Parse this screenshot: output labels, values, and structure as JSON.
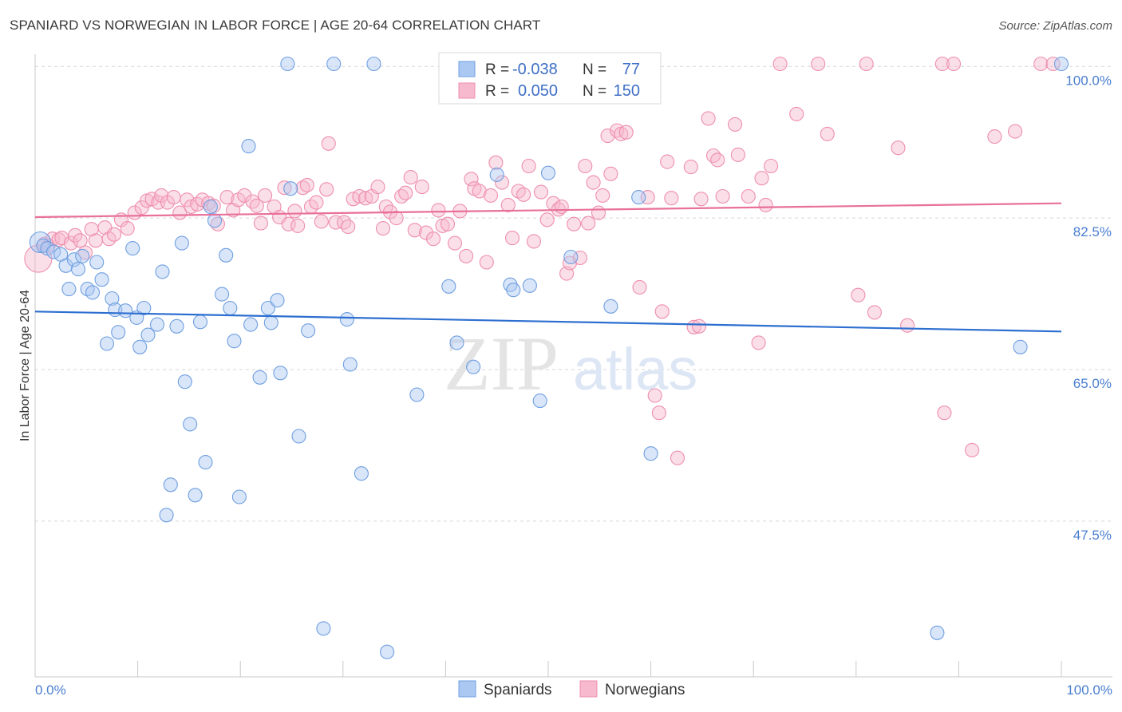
{
  "header": {
    "title": "SPANIARD VS NORWEGIAN IN LABOR FORCE | AGE 20-64 CORRELATION CHART",
    "source": "Source: ZipAtlas.com"
  },
  "watermark": {
    "zip": "ZIP",
    "atlas": "atlas"
  },
  "stats": {
    "row1": {
      "r_label": "R =",
      "r_value": "-0.038",
      "n_label": "N =",
      "n_value": "77"
    },
    "row2": {
      "r_label": "R =",
      "r_value": "0.050",
      "n_label": "N =",
      "n_value": "150"
    }
  },
  "legend": {
    "series1": "Spaniards",
    "series2": "Norwegians"
  },
  "colors": {
    "blue_fill": "#aac8f2",
    "blue_stroke": "#6f9fe0",
    "blue_line": "#2d6fd0",
    "pink_fill": "#f6b9cd",
    "pink_stroke": "#ee8eae",
    "pink_line": "#e8709a",
    "tick_text": "#4a7fd0"
  },
  "chart_data": {
    "type": "scatter",
    "title": "SPANIARD VS NORWEGIAN IN LABOR FORCE | AGE 20-64 CORRELATION CHART",
    "ylabel": "In Labor Force | Age 20-64",
    "xlabel": "",
    "xlim": [
      0,
      100
    ],
    "ylim": [
      31,
      101.5
    ],
    "x_ticks": [
      "0.0%",
      "100.0%"
    ],
    "y_ticks": [
      {
        "value": 100,
        "label": "100.0%"
      },
      {
        "value": 82.5,
        "label": "82.5%"
      },
      {
        "value": 65,
        "label": "65.0%"
      },
      {
        "value": 47.5,
        "label": "47.5%"
      }
    ],
    "grid": "horizontal dashed",
    "series": [
      {
        "name": "Spaniards",
        "color": "#6f9fe0",
        "trend": {
          "x": [
            0,
            100
          ],
          "y": [
            71.7,
            69.4
          ]
        },
        "points": [
          [
            0.5,
            79.7
          ],
          [
            0.8,
            79.3
          ],
          [
            1.2,
            79.0
          ],
          [
            1.8,
            78.6
          ],
          [
            2.5,
            78.3
          ],
          [
            3.0,
            77.0
          ],
          [
            3.3,
            74.3
          ],
          [
            3.8,
            77.7
          ],
          [
            4.2,
            76.6
          ],
          [
            4.6,
            78.1
          ],
          [
            5.1,
            74.3
          ],
          [
            5.6,
            73.9
          ],
          [
            6.0,
            77.4
          ],
          [
            6.5,
            75.4
          ],
          [
            7.0,
            68.0
          ],
          [
            7.5,
            73.2
          ],
          [
            7.8,
            71.9
          ],
          [
            8.1,
            69.3
          ],
          [
            8.8,
            71.8
          ],
          [
            9.5,
            79.0
          ],
          [
            9.9,
            71.0
          ],
          [
            10.2,
            67.6
          ],
          [
            10.6,
            72.1
          ],
          [
            11.0,
            69.0
          ],
          [
            11.9,
            70.2
          ],
          [
            12.4,
            76.3
          ],
          [
            12.8,
            48.2
          ],
          [
            13.2,
            51.7
          ],
          [
            13.8,
            70.0
          ],
          [
            14.3,
            79.6
          ],
          [
            14.6,
            63.6
          ],
          [
            15.1,
            58.7
          ],
          [
            15.6,
            50.5
          ],
          [
            16.1,
            70.5
          ],
          [
            16.6,
            54.3
          ],
          [
            17.1,
            83.8
          ],
          [
            17.5,
            82.2
          ],
          [
            18.2,
            73.7
          ],
          [
            18.6,
            78.2
          ],
          [
            19.0,
            72.1
          ],
          [
            19.4,
            68.3
          ],
          [
            19.9,
            50.3
          ],
          [
            20.8,
            90.8
          ],
          [
            21.0,
            70.2
          ],
          [
            21.9,
            64.1
          ],
          [
            22.7,
            72.1
          ],
          [
            23.0,
            70.4
          ],
          [
            23.6,
            73.0
          ],
          [
            23.9,
            64.6
          ],
          [
            24.6,
            100.3
          ],
          [
            24.9,
            85.9
          ],
          [
            25.7,
            57.3
          ],
          [
            26.6,
            69.5
          ],
          [
            28.1,
            35.1
          ],
          [
            29.1,
            100.3
          ],
          [
            30.4,
            70.8
          ],
          [
            30.7,
            65.6
          ],
          [
            31.8,
            53.0
          ],
          [
            33.0,
            100.3
          ],
          [
            34.3,
            32.4
          ],
          [
            37.2,
            62.1
          ],
          [
            40.3,
            74.6
          ],
          [
            41.1,
            68.1
          ],
          [
            42.7,
            65.3
          ],
          [
            45.0,
            87.5
          ],
          [
            46.3,
            74.8
          ],
          [
            46.6,
            74.2
          ],
          [
            48.2,
            74.7
          ],
          [
            49.2,
            61.4
          ],
          [
            50.0,
            87.7
          ],
          [
            52.2,
            78.0
          ],
          [
            56.1,
            72.3
          ],
          [
            58.8,
            84.9
          ],
          [
            60.0,
            55.3
          ],
          [
            87.9,
            34.6
          ],
          [
            96.0,
            67.6
          ],
          [
            100.0,
            100.3
          ]
        ]
      },
      {
        "name": "Norwegians",
        "color": "#ee8eae",
        "trend": {
          "x": [
            0,
            100
          ],
          "y": [
            82.6,
            84.2
          ]
        },
        "points": [
          [
            0.3,
            77.8
          ],
          [
            0.9,
            79.5
          ],
          [
            1.3,
            79.3
          ],
          [
            1.7,
            80.1
          ],
          [
            2.3,
            80.0
          ],
          [
            2.6,
            80.2
          ],
          [
            3.5,
            79.6
          ],
          [
            3.9,
            80.5
          ],
          [
            4.4,
            79.9
          ],
          [
            4.9,
            78.5
          ],
          [
            5.5,
            81.2
          ],
          [
            5.9,
            79.9
          ],
          [
            6.8,
            81.4
          ],
          [
            7.2,
            80.1
          ],
          [
            7.7,
            80.6
          ],
          [
            8.4,
            82.3
          ],
          [
            9.0,
            81.3
          ],
          [
            9.7,
            83.1
          ],
          [
            10.4,
            83.7
          ],
          [
            10.9,
            84.5
          ],
          [
            11.4,
            84.7
          ],
          [
            12.0,
            84.3
          ],
          [
            12.3,
            85.1
          ],
          [
            12.9,
            84.3
          ],
          [
            13.5,
            84.9
          ],
          [
            14.1,
            83.1
          ],
          [
            14.8,
            84.6
          ],
          [
            15.2,
            83.8
          ],
          [
            15.8,
            84.1
          ],
          [
            16.3,
            84.6
          ],
          [
            16.9,
            84.2
          ],
          [
            17.4,
            83.9
          ],
          [
            17.8,
            81.8
          ],
          [
            18.7,
            84.9
          ],
          [
            19.3,
            83.4
          ],
          [
            19.8,
            84.6
          ],
          [
            20.4,
            85.1
          ],
          [
            21.2,
            84.4
          ],
          [
            21.6,
            83.9
          ],
          [
            22.0,
            81.9
          ],
          [
            22.4,
            85.1
          ],
          [
            23.3,
            83.8
          ],
          [
            23.8,
            82.6
          ],
          [
            24.3,
            86.0
          ],
          [
            24.7,
            81.8
          ],
          [
            25.3,
            83.3
          ],
          [
            25.6,
            81.6
          ],
          [
            26.1,
            86.0
          ],
          [
            26.5,
            86.3
          ],
          [
            26.9,
            83.8
          ],
          [
            27.4,
            84.3
          ],
          [
            27.9,
            82.1
          ],
          [
            28.4,
            85.8
          ],
          [
            28.6,
            91.1
          ],
          [
            29.3,
            82.0
          ],
          [
            30.1,
            82.0
          ],
          [
            30.5,
            81.5
          ],
          [
            31.0,
            84.7
          ],
          [
            31.6,
            85.0
          ],
          [
            32.2,
            84.8
          ],
          [
            32.8,
            85.0
          ],
          [
            33.4,
            86.1
          ],
          [
            33.9,
            81.3
          ],
          [
            34.2,
            83.8
          ],
          [
            34.6,
            83.2
          ],
          [
            35.2,
            82.5
          ],
          [
            35.7,
            85.0
          ],
          [
            36.1,
            85.4
          ],
          [
            36.6,
            87.2
          ],
          [
            37.0,
            81.1
          ],
          [
            37.7,
            86.1
          ],
          [
            38.1,
            80.8
          ],
          [
            38.8,
            80.1
          ],
          [
            39.3,
            83.4
          ],
          [
            39.7,
            81.6
          ],
          [
            40.2,
            81.8
          ],
          [
            40.9,
            79.6
          ],
          [
            41.4,
            83.3
          ],
          [
            42.0,
            78.1
          ],
          [
            42.5,
            87.0
          ],
          [
            42.8,
            85.9
          ],
          [
            43.3,
            85.6
          ],
          [
            44.0,
            77.4
          ],
          [
            44.4,
            85.1
          ],
          [
            44.9,
            88.9
          ],
          [
            45.5,
            86.6
          ],
          [
            46.1,
            84.0
          ],
          [
            46.5,
            80.2
          ],
          [
            47.1,
            85.6
          ],
          [
            47.6,
            85.2
          ],
          [
            48.1,
            88.5
          ],
          [
            48.6,
            79.8
          ],
          [
            49.3,
            85.5
          ],
          [
            49.9,
            82.3
          ],
          [
            50.5,
            84.2
          ],
          [
            51.0,
            83.5
          ],
          [
            51.3,
            83.8
          ],
          [
            51.8,
            76.1
          ],
          [
            52.1,
            77.3
          ],
          [
            52.5,
            81.8
          ],
          [
            53.1,
            77.9
          ],
          [
            53.6,
            88.5
          ],
          [
            53.9,
            81.9
          ],
          [
            54.4,
            86.6
          ],
          [
            54.9,
            83.1
          ],
          [
            55.3,
            85.1
          ],
          [
            55.8,
            92.0
          ],
          [
            56.1,
            87.6
          ],
          [
            56.7,
            92.6
          ],
          [
            57.1,
            92.2
          ],
          [
            57.6,
            92.4
          ],
          [
            58.0,
            97.0
          ],
          [
            58.9,
            74.5
          ],
          [
            59.7,
            84.9
          ],
          [
            60.4,
            62.0
          ],
          [
            60.8,
            60.0
          ],
          [
            61.1,
            71.7
          ],
          [
            61.6,
            89.0
          ],
          [
            62.0,
            84.8
          ],
          [
            62.6,
            54.8
          ],
          [
            63.9,
            88.4
          ],
          [
            64.2,
            69.9
          ],
          [
            64.7,
            70.0
          ],
          [
            64.9,
            84.7
          ],
          [
            65.6,
            94.0
          ],
          [
            66.1,
            89.7
          ],
          [
            66.5,
            89.2
          ],
          [
            67.0,
            85.0
          ],
          [
            68.2,
            93.3
          ],
          [
            68.5,
            89.8
          ],
          [
            69.5,
            85.0
          ],
          [
            70.5,
            68.1
          ],
          [
            70.8,
            87.1
          ],
          [
            71.2,
            84.0
          ],
          [
            71.7,
            88.5
          ],
          [
            72.6,
            100.3
          ],
          [
            74.2,
            94.5
          ],
          [
            76.3,
            100.3
          ],
          [
            77.2,
            92.2
          ],
          [
            80.2,
            73.6
          ],
          [
            81.0,
            100.3
          ],
          [
            81.8,
            71.6
          ],
          [
            84.1,
            90.6
          ],
          [
            85.0,
            70.1
          ],
          [
            88.4,
            100.3
          ],
          [
            88.6,
            60.0
          ],
          [
            89.5,
            100.3
          ],
          [
            91.3,
            55.7
          ],
          [
            93.5,
            91.9
          ],
          [
            95.5,
            92.5
          ],
          [
            98.0,
            100.3
          ],
          [
            99.2,
            100.3
          ]
        ]
      }
    ]
  }
}
